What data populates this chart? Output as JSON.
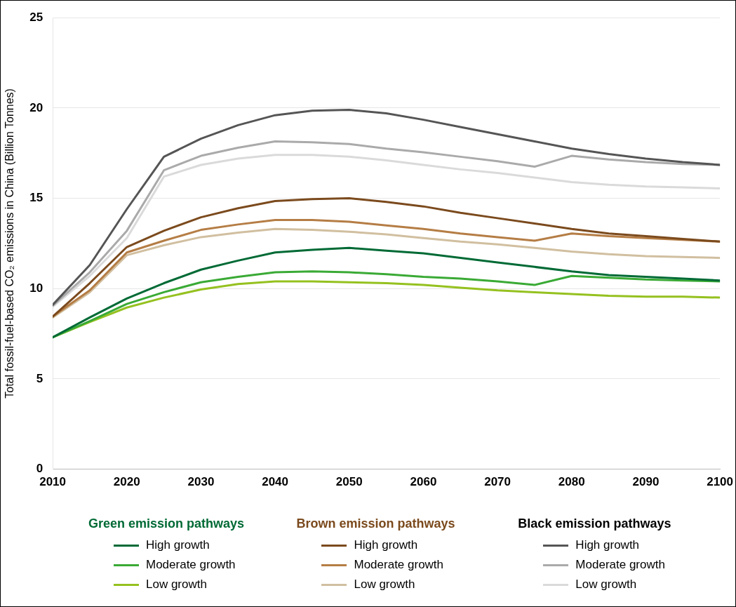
{
  "chart_data": {
    "type": "line",
    "ylabel": "Total fossil-fuel-based CO₂ emissions in China (Billion Tonnes)",
    "x": [
      2010,
      2015,
      2020,
      2025,
      2030,
      2035,
      2040,
      2045,
      2050,
      2055,
      2060,
      2065,
      2070,
      2075,
      2080,
      2085,
      2090,
      2095,
      2100
    ],
    "xlim": [
      2010,
      2100
    ],
    "xticks": [
      2010,
      2020,
      2030,
      2040,
      2050,
      2060,
      2070,
      2080,
      2090,
      2100
    ],
    "ylim": [
      0,
      25
    ],
    "yticks": [
      0,
      5,
      10,
      15,
      20,
      25
    ],
    "grid": "y",
    "legend": "bottom",
    "marker": "none",
    "line_style": "solid",
    "annotations": [
      "Green emission pathways",
      "Brown emission pathways",
      "Black emission pathways"
    ],
    "series": [
      {
        "name": "High growth",
        "color": "#006a35",
        "values": [
          7.3,
          8.4,
          9.45,
          10.3,
          11.05,
          11.55,
          12.0,
          12.15,
          12.25,
          12.1,
          11.95,
          11.7,
          11.45,
          11.2,
          10.95,
          10.75,
          10.65,
          10.55,
          10.45
        ]
      },
      {
        "name": "Moderate growth",
        "color": "#3aaa35",
        "values": [
          7.3,
          8.2,
          9.15,
          9.8,
          10.35,
          10.65,
          10.9,
          10.95,
          10.9,
          10.8,
          10.65,
          10.55,
          10.4,
          10.2,
          10.7,
          10.6,
          10.5,
          10.45,
          10.4
        ]
      },
      {
        "name": "Low growth",
        "color": "#95c11f",
        "values": [
          7.3,
          8.15,
          8.95,
          9.5,
          9.95,
          10.25,
          10.4,
          10.4,
          10.35,
          10.3,
          10.2,
          10.05,
          9.9,
          9.8,
          9.7,
          9.6,
          9.55,
          9.55,
          9.5
        ]
      },
      {
        "name": "High growth",
        "color": "#7b4a1d",
        "values": [
          8.45,
          10.3,
          12.3,
          13.2,
          13.95,
          14.45,
          14.85,
          14.95,
          15.0,
          14.8,
          14.55,
          14.2,
          13.9,
          13.6,
          13.3,
          13.05,
          12.9,
          12.75,
          12.6
        ]
      },
      {
        "name": "Moderate growth",
        "color": "#b57d45",
        "values": [
          8.45,
          9.9,
          12.0,
          12.65,
          13.25,
          13.55,
          13.8,
          13.8,
          13.7,
          13.5,
          13.3,
          13.05,
          12.85,
          12.65,
          13.05,
          12.9,
          12.8,
          12.7,
          12.6
        ]
      },
      {
        "name": "Low growth",
        "color": "#d1bfa0",
        "values": [
          8.4,
          9.8,
          11.85,
          12.4,
          12.85,
          13.1,
          13.3,
          13.25,
          13.15,
          13.0,
          12.8,
          12.6,
          12.45,
          12.25,
          12.05,
          11.9,
          11.8,
          11.75,
          11.7
        ]
      },
      {
        "name": "High growth",
        "color": "#555555",
        "values": [
          9.1,
          11.3,
          14.4,
          17.3,
          18.3,
          19.05,
          19.6,
          19.85,
          19.9,
          19.7,
          19.35,
          18.95,
          18.55,
          18.15,
          17.75,
          17.45,
          17.2,
          17.0,
          16.85
        ]
      },
      {
        "name": "Moderate growth",
        "color": "#aaaaaa",
        "values": [
          9.05,
          10.9,
          13.2,
          16.55,
          17.35,
          17.8,
          18.15,
          18.1,
          18.0,
          17.75,
          17.55,
          17.3,
          17.05,
          16.75,
          17.35,
          17.15,
          17.0,
          16.9,
          16.85
        ]
      },
      {
        "name": "Low growth",
        "color": "#dadada",
        "values": [
          9.0,
          10.7,
          12.8,
          16.2,
          16.85,
          17.2,
          17.4,
          17.4,
          17.3,
          17.1,
          16.85,
          16.6,
          16.4,
          16.15,
          15.9,
          15.75,
          15.65,
          15.6,
          15.55
        ]
      }
    ]
  }
}
